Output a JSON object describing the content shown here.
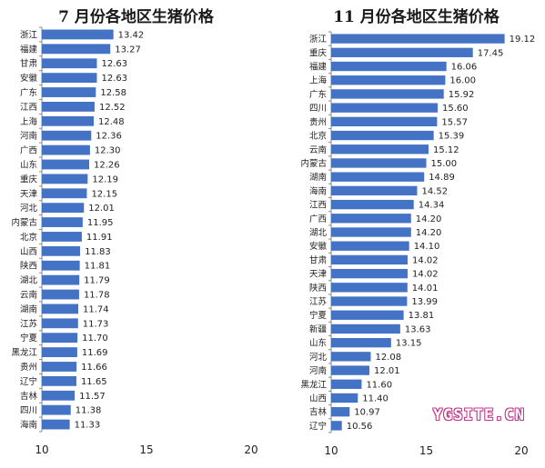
{
  "colors": {
    "bar": "#4472c4",
    "axis": "#8a8a8a",
    "text": "#222222",
    "watermark": "#c23a8e"
  },
  "watermark": {
    "text": "YGSITE.CN"
  },
  "chart_data": [
    {
      "type": "bar",
      "orientation": "horizontal",
      "title": "7 月份各地区生猪价格",
      "xlim": [
        10,
        20
      ],
      "xticks": [
        "10",
        "15",
        "20"
      ],
      "grid": false,
      "categories": [
        "浙江",
        "福建",
        "甘肃",
        "安徽",
        "广东",
        "江西",
        "上海",
        "河南",
        "广西",
        "山东",
        "重庆",
        "天津",
        "河北",
        "内蒙古",
        "北京",
        "山西",
        "陕西",
        "湖北",
        "云南",
        "湖南",
        "江苏",
        "宁夏",
        "黑龙江",
        "贵州",
        "辽宁",
        "吉林",
        "四川",
        "海南"
      ],
      "values": [
        13.42,
        13.27,
        12.63,
        12.63,
        12.58,
        12.52,
        12.48,
        12.36,
        12.3,
        12.26,
        12.19,
        12.15,
        12.01,
        11.95,
        11.91,
        11.83,
        11.81,
        11.79,
        11.78,
        11.74,
        11.73,
        11.7,
        11.69,
        11.66,
        11.65,
        11.57,
        11.38,
        11.33
      ],
      "labels": [
        "13.42",
        "13.27",
        "12.63",
        "12.63",
        "12.58",
        "12.52",
        "12.48",
        "12.36",
        "12.30",
        "12.26",
        "12.19",
        "12.15",
        "12.01",
        "11.95",
        "11.91",
        "11.83",
        "11.81",
        "11.79",
        "11.78",
        "11.74",
        "11.73",
        "11.70",
        "11.69",
        "11.66",
        "11.65",
        "11.57",
        "11.38",
        "11.33"
      ]
    },
    {
      "type": "bar",
      "orientation": "horizontal",
      "title": "11 月份各地区生猪价格",
      "xlim": [
        10,
        20
      ],
      "xticks": [
        "10",
        "15",
        "20"
      ],
      "grid": false,
      "categories": [
        "浙江",
        "重庆",
        "福建",
        "上海",
        "广东",
        "四川",
        "贵州",
        "北京",
        "云南",
        "内蒙古",
        "湖南",
        "海南",
        "江西",
        "广西",
        "湖北",
        "安徽",
        "甘肃",
        "天津",
        "陕西",
        "江苏",
        "宁夏",
        "新疆",
        "山东",
        "河北",
        "河南",
        "黑龙江",
        "山西",
        "吉林",
        "辽宁"
      ],
      "values": [
        19.12,
        17.45,
        16.06,
        16.0,
        15.92,
        15.6,
        15.57,
        15.39,
        15.12,
        15.0,
        14.89,
        14.52,
        14.34,
        14.2,
        14.2,
        14.1,
        14.02,
        14.02,
        14.01,
        13.99,
        13.81,
        13.63,
        13.15,
        12.08,
        12.01,
        11.6,
        11.4,
        10.97,
        10.56
      ],
      "labels": [
        "19.12",
        "17.45",
        "16.06",
        "16.00",
        "15.92",
        "15.60",
        "15.57",
        "15.39",
        "15.12",
        "15.00",
        "14.89",
        "14.52",
        "14.34",
        "14.20",
        "14.20",
        "14.10",
        "14.02",
        "14.02",
        "14.01",
        "13.99",
        "13.81",
        "13.63",
        "13.15",
        "12.08",
        "12.01",
        "11.60",
        "11.40",
        "10.97",
        "10.56"
      ]
    }
  ]
}
